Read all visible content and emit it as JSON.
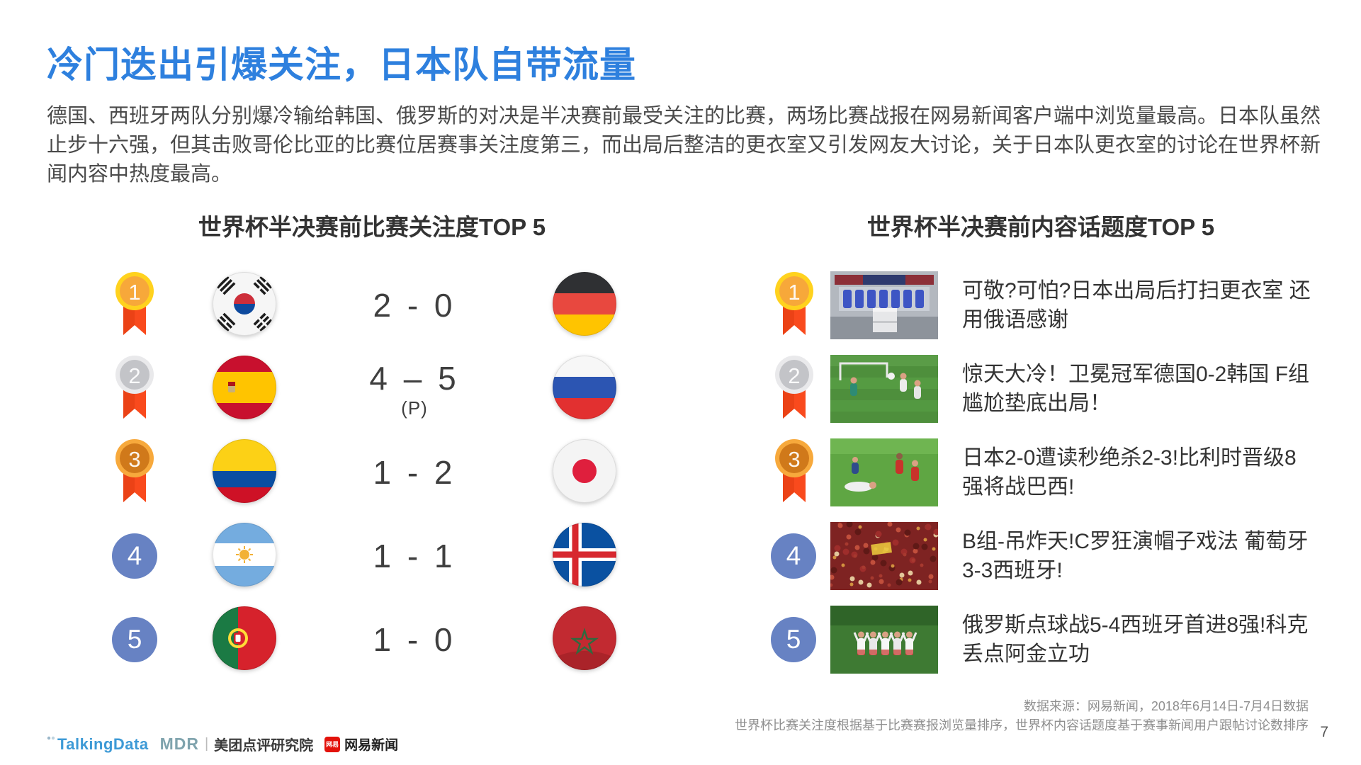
{
  "page": {
    "title": "冷门迭出引爆关注，日本队自带流量",
    "intro": "德国、西班牙两队分别爆冷输给韩国、俄罗斯的对决是半决赛前最受关注的比赛，两场比赛战报在网易新闻客户端中浏览量最高。日本队虽然止步十六强，但其击败哥伦比亚的比赛位居赛事关注度第三，而出局后整洁的更衣室又引发网友大讨论，关于日本队更衣室的讨论在世界杯新闻内容中热度最高。",
    "page_number": "7"
  },
  "colors": {
    "title_blue": "#2E80DE",
    "medal_gold_ring": "#FFD21E",
    "medal_gold_inner": "#F7A83A",
    "medal_silver_ring": "#E9E9EB",
    "medal_silver_inner": "#C3C4C8",
    "medal_bronze_ring": "#F7A93C",
    "medal_bronze_inner": "#D0791A",
    "ribbon_red": "#F94A1D",
    "rank_circle_blue": "#6782C3"
  },
  "match_ranking": {
    "header": "世界杯半决赛前比赛关注度TOP 5",
    "rows": [
      {
        "rank": 1,
        "badge": "gold-medal",
        "team_left": "South Korea",
        "flag_left": "kr",
        "score": "2 - 0",
        "note": "",
        "team_right": "Germany",
        "flag_right": "de"
      },
      {
        "rank": 2,
        "badge": "silver-medal",
        "team_left": "Spain",
        "flag_left": "es",
        "score": "4 – 5",
        "note": "(P)",
        "team_right": "Russia",
        "flag_right": "ru"
      },
      {
        "rank": 3,
        "badge": "bronze-medal",
        "team_left": "Colombia",
        "flag_left": "co",
        "score": "1 - 2",
        "note": "",
        "team_right": "Japan",
        "flag_right": "jp"
      },
      {
        "rank": 4,
        "badge": "blue-circle",
        "team_left": "Argentina",
        "flag_left": "ar",
        "score": "1 - 1",
        "note": "",
        "team_right": "Iceland",
        "flag_right": "is"
      },
      {
        "rank": 5,
        "badge": "blue-circle",
        "team_left": "Portugal",
        "flag_left": "pt",
        "score": "1 - 0",
        "note": "",
        "team_right": "Morocco",
        "flag_right": "ma"
      }
    ]
  },
  "topic_ranking": {
    "header": "世界杯半决赛前内容话题度TOP 5",
    "rows": [
      {
        "rank": 1,
        "badge": "gold-medal",
        "thumb": "locker-room",
        "title": "可敬?可怕?日本出局后打扫更衣室 还用俄语感谢"
      },
      {
        "rank": 2,
        "badge": "silver-medal",
        "thumb": "upset-match",
        "title": "惊天大冷！卫冕冠军德国0-2韩国 F组尴尬垫底出局！"
      },
      {
        "rank": 3,
        "badge": "bronze-medal",
        "thumb": "last-minute-goal",
        "title": "日本2-0遭读秒绝杀2-3!比利时晋级8强将战巴西!"
      },
      {
        "rank": 4,
        "badge": "blue-circle",
        "thumb": "crowd",
        "title": "B组-吊炸天!C罗狂演帽子戏法 葡萄牙3-3西班牙!"
      },
      {
        "rank": 5,
        "badge": "blue-circle",
        "thumb": "celebration",
        "title": "俄罗斯点球战5-4西班牙首进8强!科克丢点阿金立功"
      }
    ]
  },
  "footer": {
    "source_line1": "数据来源：网易新闻，2018年6月14日-7月4日数据",
    "source_line2": "世界杯比赛关注度根据基于比赛赛报浏览量排序，世界杯内容话题度基于赛事新闻用户跟帖讨论数排序",
    "logos": {
      "talkingdata": "TalkingData",
      "mdr": "MDR",
      "mdr_suffix": "美团点评研究院",
      "netease_badge": "网易",
      "netease": "网易新闻"
    }
  }
}
